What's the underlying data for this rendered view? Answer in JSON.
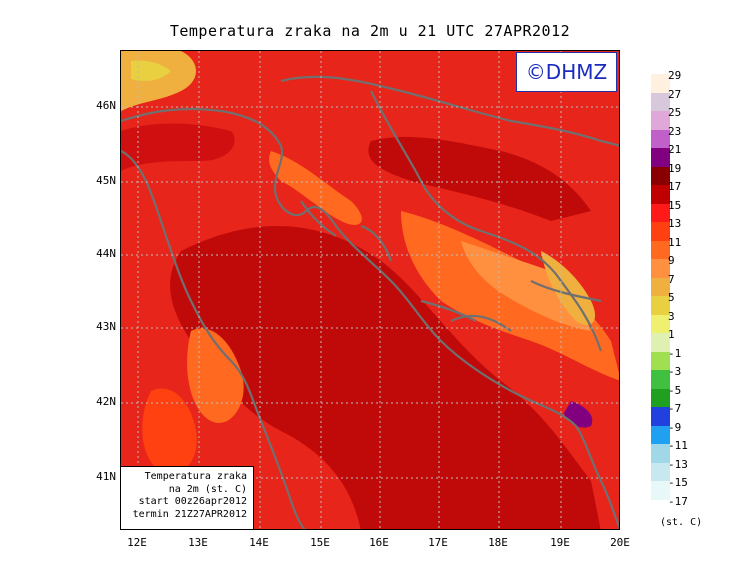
{
  "title": "Temperatura zraka na 2m u 21 UTC 27APR2012",
  "logo": "©DHMZ",
  "info_box": {
    "line1": "Temperatura zraka",
    "line2": "na 2m (st. C)",
    "line3": "start 00z26apr2012",
    "line4": "termin 21Z27APR2012"
  },
  "lat_labels": [
    "46N",
    "45N",
    "44N",
    "43N",
    "42N",
    "41N"
  ],
  "lon_labels": [
    "12E",
    "13E",
    "14E",
    "15E",
    "16E",
    "17E",
    "18E",
    "19E",
    "20E"
  ],
  "legend": {
    "units": "(st. C)",
    "levels": [
      "29",
      "27",
      "25",
      "23",
      "21",
      "19",
      "17",
      "15",
      "13",
      "11",
      "9",
      "7",
      "5",
      "3",
      "1",
      "-1",
      "-3",
      "-5",
      "-7",
      "-9",
      "-11",
      "-13",
      "-15",
      "-17"
    ],
    "colors": [
      "#fff0e0",
      "#d8c8dc",
      "#e0a8d8",
      "#c060c8",
      "#800080",
      "#8a0000",
      "#c00000",
      "#ff1a1a",
      "#ff4010",
      "#ff6a20",
      "#ff9040",
      "#f0b040",
      "#e8d040",
      "#f0f070",
      "#e0f0b0",
      "#a0e050",
      "#40c040",
      "#20a020",
      "#2040e0",
      "#20a0f0",
      "#a0d8e8",
      "#c8e8f0",
      "#e8f8f8",
      "#ffffff"
    ]
  }
}
